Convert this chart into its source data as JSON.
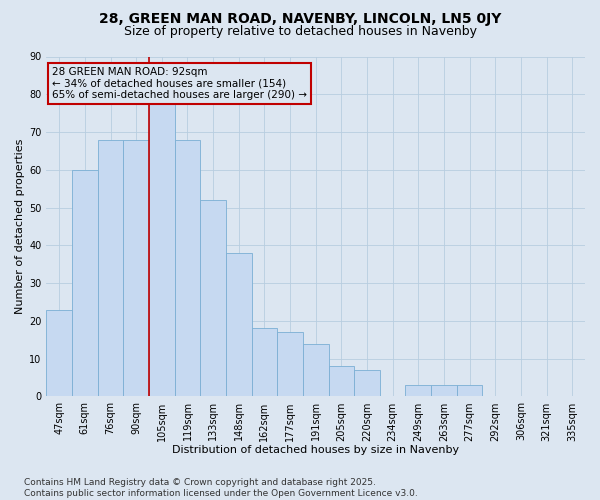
{
  "title1": "28, GREEN MAN ROAD, NAVENBY, LINCOLN, LN5 0JY",
  "title2": "Size of property relative to detached houses in Navenby",
  "xlabel": "Distribution of detached houses by size in Navenby",
  "ylabel": "Number of detached properties",
  "bins": [
    "47sqm",
    "61sqm",
    "76sqm",
    "90sqm",
    "105sqm",
    "119sqm",
    "133sqm",
    "148sqm",
    "162sqm",
    "177sqm",
    "191sqm",
    "205sqm",
    "220sqm",
    "234sqm",
    "249sqm",
    "263sqm",
    "277sqm",
    "292sqm",
    "306sqm",
    "321sqm",
    "335sqm"
  ],
  "values": [
    23,
    60,
    68,
    68,
    78,
    68,
    52,
    38,
    18,
    17,
    14,
    8,
    7,
    0,
    3,
    3,
    3,
    0,
    0,
    0,
    0
  ],
  "bar_color": "#c6d9f1",
  "bar_edge_color": "#7bafd4",
  "grid_color": "#b8cde0",
  "background_color": "#dce6f1",
  "property_line_color": "#c00000",
  "property_line_bin_index": 3.5,
  "annotation_text": "28 GREEN MAN ROAD: 92sqm\n← 34% of detached houses are smaller (154)\n65% of semi-detached houses are larger (290) →",
  "annotation_box_color": "#c00000",
  "ylim": [
    0,
    90
  ],
  "yticks": [
    0,
    10,
    20,
    30,
    40,
    50,
    60,
    70,
    80,
    90
  ],
  "footnote": "Contains HM Land Registry data © Crown copyright and database right 2025.\nContains public sector information licensed under the Open Government Licence v3.0.",
  "title1_fontsize": 10,
  "title2_fontsize": 9,
  "xlabel_fontsize": 8,
  "ylabel_fontsize": 8,
  "tick_fontsize": 7,
  "annotation_fontsize": 7.5,
  "footnote_fontsize": 6.5
}
